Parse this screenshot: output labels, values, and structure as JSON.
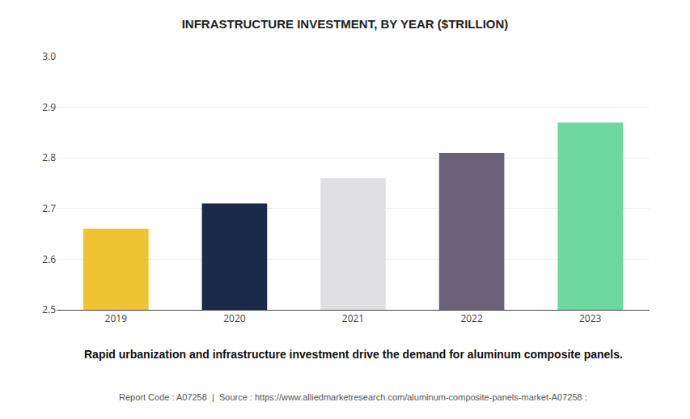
{
  "chart_data": {
    "type": "bar",
    "title": "INFRASTRUCTURE INVESTMENT, BY YEAR ($TRILLION)",
    "subtitle": "Rapid urbanization and infrastructure investment drive the demand for aluminum composite panels.",
    "footer": "Report Code : A07258  |  Source : https://www.alliedmarketresearch.com/aluminum-composite-panels-market-A07258 :",
    "categories": [
      "2019",
      "2020",
      "2021",
      "2022",
      "2023"
    ],
    "values": [
      2.66,
      2.71,
      2.76,
      2.81,
      2.87
    ],
    "colors": [
      "#F0C330",
      "#1B2A4A",
      "#E0E0E3",
      "#6B6279",
      "#6DD9A0"
    ],
    "ylim": [
      2.5,
      3.0
    ],
    "yticks": [
      2.5,
      2.6,
      2.7,
      2.8,
      2.9,
      {
        "value": 3.0,
        "label": "3.0"
      }
    ],
    "grid": true,
    "data_labels": false
  }
}
